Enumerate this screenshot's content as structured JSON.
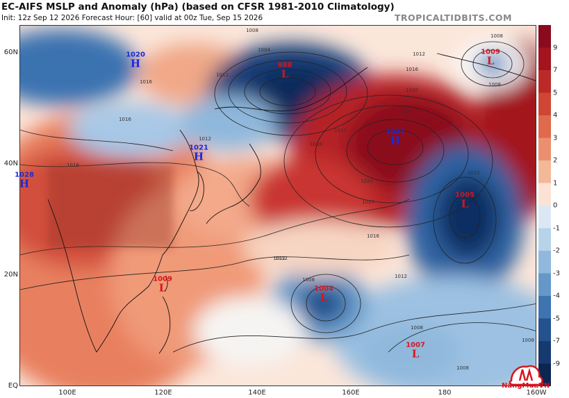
{
  "header": {
    "title": "EC-AIFS MSLP and Anomaly (hPa) (based on CFSR 1981-2010 Climatology)",
    "subtitle": "Init: 12z Sep 12 2026   Forecast Hour: [60]   valid at 00z Tue, Sep 15 2026",
    "site": "TROPICALTIDBITS.COM"
  },
  "axes": {
    "lat_labels": [
      "60N",
      "40N",
      "20N",
      "EQ"
    ],
    "lon_labels": [
      "100E",
      "120E",
      "140E",
      "160E",
      "180",
      "160W"
    ]
  },
  "colorbar": {
    "labels": [
      "9",
      "7",
      "5",
      "4",
      "3",
      "2",
      "1",
      "0",
      "-1",
      "-2",
      "-3",
      "-4",
      "-5",
      "-7",
      "-9"
    ],
    "colors": [
      "#8b0b1e",
      "#a3141f",
      "#bb2a28",
      "#cf4635",
      "#e06a4c",
      "#eb8f6e",
      "#f3b898",
      "#fbe2d4",
      "#dbe8f4",
      "#b7d3ea",
      "#8fb8dc",
      "#6598c8",
      "#3e74b0",
      "#24528f",
      "#163a70",
      "#0c2652"
    ]
  },
  "systems": [
    {
      "type": "H",
      "value": "1020"
    },
    {
      "type": "L",
      "value": "988"
    },
    {
      "type": "L",
      "value": "1009"
    },
    {
      "type": "H",
      "value": "1027"
    },
    {
      "type": "H",
      "value": "1021"
    },
    {
      "type": "H",
      "value": "1028"
    },
    {
      "type": "L",
      "value": "1005"
    },
    {
      "type": "L",
      "value": "1009"
    },
    {
      "type": "L",
      "value": "1004"
    },
    {
      "type": "L",
      "value": "1007"
    }
  ],
  "isobar_labels": [
    "1008",
    "1004",
    "1012",
    "1016",
    "1016",
    "1012",
    "1016",
    "1012",
    "1020",
    "1024",
    "1024",
    "1020",
    "1016",
    "1012",
    "1016",
    "1012",
    "1008",
    "1008",
    "1012",
    "1012",
    "1008",
    "1008",
    "1008",
    "1008",
    "1008",
    "1012",
    "1016"
  ],
  "logo": {
    "text": "NangMuaVN"
  }
}
